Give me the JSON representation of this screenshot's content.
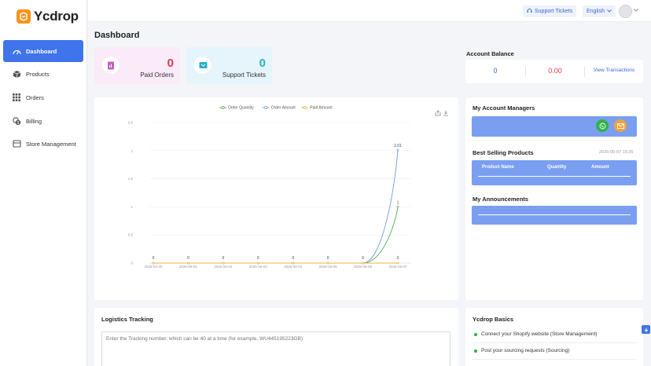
{
  "brand": {
    "name": "Ycdrop"
  },
  "sidebar": {
    "items": [
      {
        "label": "Dashboard",
        "icon": "dashboard-icon",
        "active": true
      },
      {
        "label": "Products",
        "icon": "box-icon"
      },
      {
        "label": "Orders",
        "icon": "grid-icon"
      },
      {
        "label": "Billing",
        "icon": "coin-icon"
      },
      {
        "label": "Store Management",
        "icon": "store-icon"
      }
    ]
  },
  "header": {
    "support_label": "Support Tickets",
    "language": "English"
  },
  "page": {
    "title": "Dashboard"
  },
  "stats": {
    "paid_orders": {
      "value": "0",
      "label": "Paid Orders"
    },
    "support_tickets": {
      "value": "0",
      "label": "Support Tickets"
    }
  },
  "account_balance": {
    "title": "Account Balance",
    "value1": "0",
    "value2": "0.00",
    "link": "View Transactions"
  },
  "managers": {
    "title": "My Account Managers"
  },
  "best_selling": {
    "title": "Best Selling Products",
    "timestamp": "2026-05-07 15:26",
    "columns": [
      "Product Name",
      "Quantity",
      "Amount"
    ]
  },
  "announcements": {
    "title": "My Announcements"
  },
  "logistics": {
    "title": "Logistics Tracking",
    "placeholder": "Enter the Tracking number, which can be 40 at a time (for example, WU445195223GB)"
  },
  "basics": {
    "title": "Ycdrop Basics",
    "items": [
      "Connect your Shopify website (Store Management)",
      "Post your sourcing requests (Sourcing)"
    ]
  },
  "colors": {
    "accent": "#3f74ea",
    "red": "#e0384b",
    "teal": "#2ab0c9",
    "green": "#4caf50",
    "blue": "#6a9ee8",
    "orange": "#f0b13a"
  },
  "chart_data": {
    "type": "line",
    "x": [
      "2026-04-30",
      "2026-05-01",
      "2026-05-02",
      "2026-05-03",
      "2026-05-04",
      "2026-05-05",
      "2026-05-06",
      "2026-05-07"
    ],
    "yticks": [
      "0",
      "0.5",
      "1",
      "1.5",
      "2",
      "2.5"
    ],
    "ylim": [
      0,
      2.5
    ],
    "legend_position": "top-center",
    "grid": true,
    "series": [
      {
        "name": "Order Quantity",
        "color": "#4caf50",
        "values": [
          0,
          0,
          0,
          0,
          0,
          0,
          0,
          1
        ]
      },
      {
        "name": "Order Amount",
        "color": "#6a9ee8",
        "values": [
          0,
          0,
          0,
          0,
          0,
          0,
          0,
          2.01
        ]
      },
      {
        "name": "Paid Amount",
        "color": "#f0b13a",
        "values": [
          0,
          0,
          0,
          0,
          0,
          0,
          0,
          0
        ]
      }
    ],
    "data_labels": [
      "0",
      "0",
      "0",
      "0",
      "0",
      "0",
      "0",
      "0"
    ],
    "peak_labels": [
      "1",
      "2.01"
    ]
  }
}
